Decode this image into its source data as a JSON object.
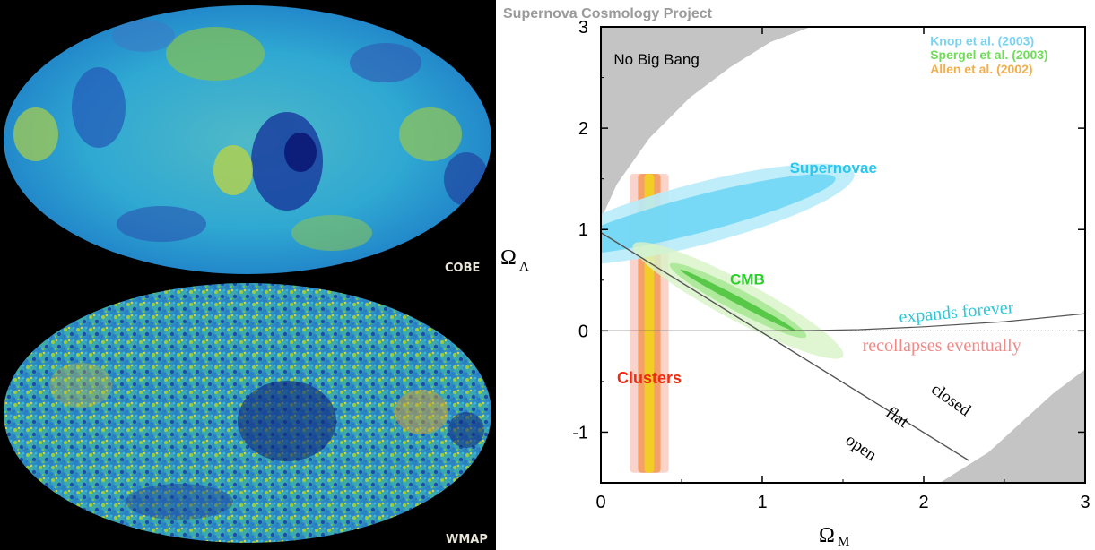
{
  "maps": {
    "top_label": "COBE",
    "bottom_label": "WMAP"
  },
  "colors": {
    "supernovae": "#29c6f0",
    "cmb": "#2ccf2c",
    "clusters": "#f02a10",
    "knop": "#7ad2f0",
    "spergel": "#6fdc5a",
    "allen": "#f2b04a",
    "expands": "#2ac8d8",
    "recollapses": "#f08a88",
    "project_title": "#9a9a9a",
    "excluded_region": "#c4c4c4"
  },
  "chart_data": {
    "type": "contour",
    "title": "Supernova Cosmology Project",
    "xlabel": "Ω",
    "xlabel_sub": "M",
    "ylabel": "Ω",
    "ylabel_sub": "Λ",
    "xlim": [
      0,
      3
    ],
    "ylim": [
      -1.5,
      3
    ],
    "x_ticks": [
      "0",
      "1",
      "2",
      "3"
    ],
    "y_ticks": [
      "-1",
      "0",
      "1",
      "2",
      "3"
    ],
    "legend": [
      {
        "name": "Knop et al. (2003)",
        "color": "#7ad2f0"
      },
      {
        "name": "Spergel et al.  (2003)",
        "color": "#6fdc5a"
      },
      {
        "name": "Allen et al.  (2002)",
        "color": "#f2b04a"
      }
    ],
    "region_labels": {
      "no_big_bang": "No Big Bang",
      "supernovae": "Supernovae",
      "cmb": "CMB",
      "clusters": "Clusters",
      "expands": "expands forever",
      "recollapses": "recollapses eventually",
      "closed": "closed",
      "flat": "flat",
      "open": "open"
    },
    "contours": {
      "supernovae": {
        "center": [
          0.6,
          1.15
        ],
        "axis": [
          1.2,
          0.5
        ],
        "semi_major": 1.05,
        "semi_minor": [
          0.2,
          0.12
        ]
      },
      "cmb": {
        "from": [
          0.2,
          0.85
        ],
        "to": [
          1.5,
          -0.25
        ]
      },
      "clusters": {
        "x_center": 0.3,
        "half_widths": [
          0.12,
          0.07,
          0.03
        ],
        "y_range": [
          -1.4,
          1.55
        ]
      }
    },
    "flat_line": {
      "x": [
        0,
        2.28
      ],
      "y": [
        0.97,
        -1.28
      ]
    },
    "bounce_boundary": {
      "x": [
        0,
        0.1,
        0.3,
        0.55,
        0.8,
        1.05,
        1.3
      ],
      "y": [
        1.1,
        1.45,
        1.9,
        2.3,
        2.6,
        2.85,
        3.0
      ]
    },
    "recollapse_boundary": {
      "x": [
        2.1,
        2.4,
        2.8,
        3.0
      ],
      "y": [
        -1.5,
        -1.2,
        -0.62,
        -0.38
      ]
    },
    "expansion_boundary": {
      "x": [
        1.0,
        1.3,
        1.6,
        2.0,
        2.5,
        3.0
      ],
      "y": [
        0.0,
        0.003,
        0.012,
        0.04,
        0.09,
        0.17
      ]
    }
  }
}
